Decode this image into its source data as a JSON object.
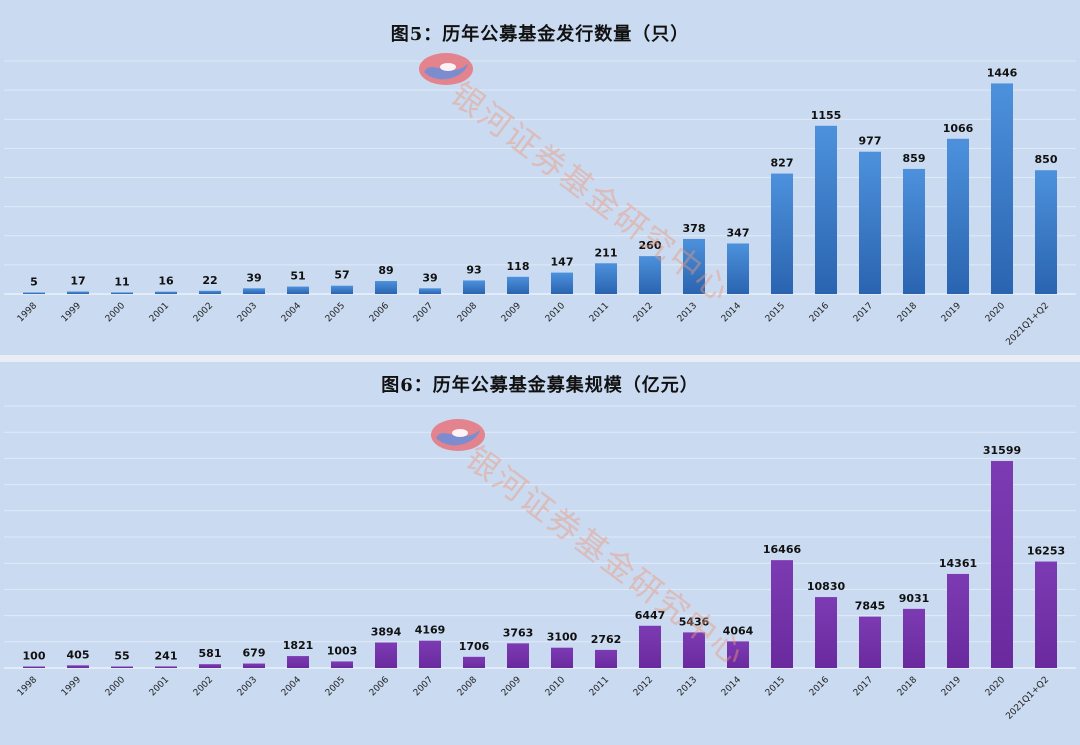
{
  "watermark": {
    "text": "银河证券基金研究中心"
  },
  "colors": {
    "panel_bg": "#c9daf1",
    "bar1_top": "#4d91dc",
    "bar1_bottom": "#2a64b0",
    "bar2_top": "#7d3bb3",
    "bar2_bottom": "#6a2a9e"
  },
  "chart_data": [
    {
      "type": "bar",
      "title": "图5：历年公募基金发行数量（只）",
      "xlabel": "",
      "ylabel": "",
      "ylim": [
        0,
        1600
      ],
      "grid": true,
      "categories": [
        "1998",
        "1999",
        "2000",
        "2001",
        "2002",
        "2003",
        "2004",
        "2005",
        "2006",
        "2007",
        "2008",
        "2009",
        "2010",
        "2011",
        "2012",
        "2013",
        "2014",
        "2015",
        "2016",
        "2017",
        "2018",
        "2019",
        "2020",
        "2021Q1+Q2"
      ],
      "values": [
        5,
        17,
        11,
        16,
        22,
        39,
        51,
        57,
        89,
        39,
        93,
        118,
        147,
        211,
        260,
        378,
        347,
        827,
        1155,
        977,
        859,
        1066,
        1446,
        850
      ]
    },
    {
      "type": "bar",
      "title": "图6：历年公募基金募集规模（亿元）",
      "xlabel": "",
      "ylabel": "",
      "ylim": [
        0,
        40000
      ],
      "grid": true,
      "categories": [
        "1998",
        "1999",
        "2000",
        "2001",
        "2002",
        "2003",
        "2004",
        "2005",
        "2006",
        "2007",
        "2008",
        "2009",
        "2010",
        "2011",
        "2012",
        "2013",
        "2014",
        "2015",
        "2016",
        "2017",
        "2018",
        "2019",
        "2020",
        "2021Q1+Q2"
      ],
      "values": [
        100,
        405,
        55,
        241,
        581,
        679,
        1821,
        1003,
        3894,
        4169,
        1706,
        3763,
        3100,
        2762,
        6447,
        5436,
        4064,
        16466,
        10830,
        7845,
        9031,
        14361,
        31599,
        16253
      ]
    }
  ]
}
